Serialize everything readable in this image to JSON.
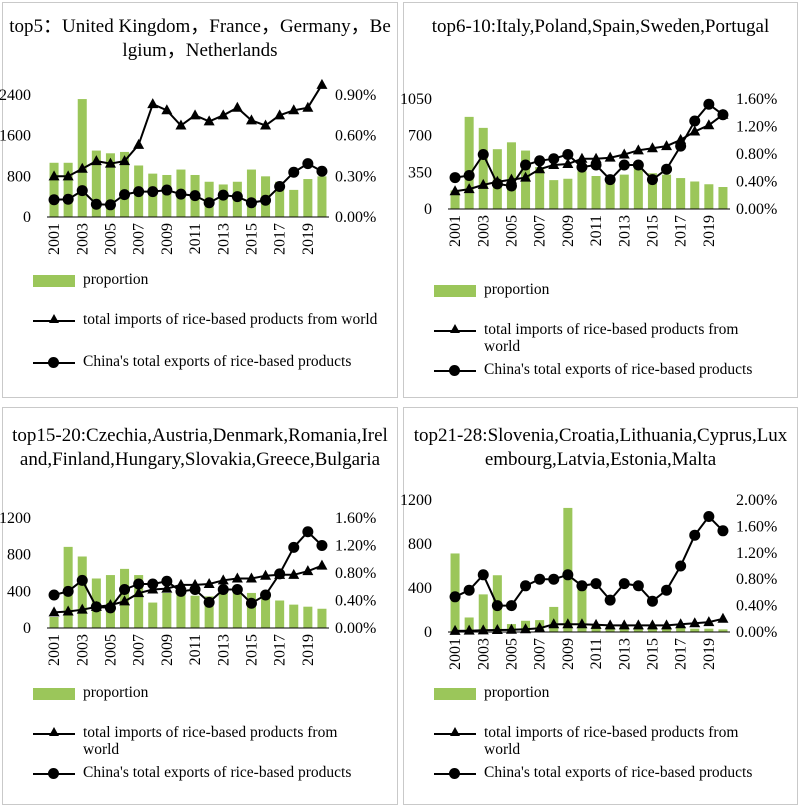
{
  "colors": {
    "bar": "#9bc65a",
    "line": "#000000"
  },
  "legend_labels": {
    "proportion": "proportion",
    "imports": "total imports of rice-based products from world",
    "exports": "China's total exports of rice-based products"
  },
  "chart_data": [
    {
      "type": "bar+line",
      "title": "top5：United Kingdom，France，Germany，Belgium，Netherlands",
      "years": [
        2001,
        2002,
        2003,
        2004,
        2005,
        2006,
        2007,
        2008,
        2009,
        2010,
        2011,
        2012,
        2013,
        2014,
        2015,
        2016,
        2017,
        2018,
        2019,
        2020
      ],
      "x_tick_labels": [
        "2001",
        "2003",
        "2005",
        "2007",
        "2009",
        "2011",
        "2013",
        "2015",
        "2017",
        "2019"
      ],
      "left_axis": {
        "min": 0,
        "max": 2400,
        "ticks": [
          "0",
          "800",
          "1600",
          "2400"
        ]
      },
      "right_axis": {
        "min": 0,
        "max": 0.9,
        "ticks": [
          "0.00%",
          "0.30%",
          "0.60%",
          "0.90%"
        ]
      },
      "series": [
        {
          "name": "proportion",
          "axis": "right",
          "kind": "bar",
          "values": [
            0.4,
            0.4,
            0.87,
            0.49,
            0.47,
            0.48,
            0.38,
            0.32,
            0.31,
            0.35,
            0.31,
            0.26,
            0.24,
            0.26,
            0.35,
            0.3,
            0.26,
            0.2,
            0.28,
            0.3
          ]
        },
        {
          "name": "total imports of rice-based products from world",
          "axis": "left",
          "kind": "line-triangle",
          "values": [
            800,
            800,
            950,
            1100,
            1050,
            1100,
            1420,
            2220,
            2100,
            1800,
            2000,
            1880,
            2000,
            2150,
            1900,
            1800,
            2000,
            2100,
            2150,
            2600
          ]
        },
        {
          "name": "China's total exports of rice-based products",
          "axis": "left",
          "kind": "line-circle",
          "values": [
            340,
            350,
            520,
            250,
            240,
            440,
            500,
            500,
            530,
            450,
            420,
            280,
            430,
            400,
            280,
            330,
            600,
            880,
            1050,
            900
          ]
        }
      ]
    },
    {
      "type": "bar+line",
      "title": "top6-10:Italy,Poland,Spain,Sweden,Portugal",
      "years": [
        2001,
        2002,
        2003,
        2004,
        2005,
        2006,
        2007,
        2008,
        2009,
        2010,
        2011,
        2012,
        2013,
        2014,
        2015,
        2016,
        2017,
        2018,
        2019,
        2020
      ],
      "x_tick_labels": [
        "2001",
        "2003",
        "2005",
        "2007",
        "2009",
        "2011",
        "2013",
        "2015",
        "2017",
        "2019"
      ],
      "left_axis": {
        "min": 0,
        "max": 1050,
        "ticks": [
          "0",
          "350",
          "700",
          "1050"
        ]
      },
      "right_axis": {
        "min": 0,
        "max": 1.6,
        "ticks": [
          "0.00%",
          "0.40%",
          "0.80%",
          "1.20%",
          "1.60%"
        ]
      },
      "series": [
        {
          "name": "proportion",
          "axis": "right",
          "kind": "bar",
          "values": [
            0.27,
            1.34,
            1.18,
            0.87,
            0.97,
            0.85,
            0.61,
            0.42,
            0.44,
            0.55,
            0.48,
            0.45,
            0.5,
            0.6,
            0.52,
            0.5,
            0.45,
            0.4,
            0.36,
            0.32
          ]
        },
        {
          "name": "total imports of rice-based products from world",
          "axis": "left",
          "kind": "line-triangle",
          "values": [
            170,
            190,
            230,
            260,
            280,
            300,
            380,
            420,
            430,
            480,
            480,
            490,
            520,
            560,
            580,
            600,
            660,
            740,
            800,
            900
          ]
        },
        {
          "name": "China's total exports of rice-based products",
          "axis": "left",
          "kind": "line-circle",
          "values": [
            300,
            320,
            520,
            240,
            220,
            420,
            460,
            480,
            520,
            400,
            420,
            280,
            420,
            420,
            280,
            380,
            600,
            840,
            1000,
            900
          ]
        }
      ]
    },
    {
      "type": "bar+line",
      "title": "top15-20:Czechia,Austria,Denmark,Romania,Ireland,Finland,Hungary,Slovakia,Greece,Bulgaria",
      "years": [
        2001,
        2002,
        2003,
        2004,
        2005,
        2006,
        2007,
        2008,
        2009,
        2010,
        2011,
        2012,
        2013,
        2014,
        2015,
        2016,
        2017,
        2018,
        2019,
        2020
      ],
      "x_tick_labels": [
        "2001",
        "2003",
        "2005",
        "2007",
        "2009",
        "2011",
        "2013",
        "2015",
        "2017",
        "2019"
      ],
      "left_axis": {
        "min": 0,
        "max": 1200,
        "ticks": [
          "0",
          "400",
          "800",
          "1200"
        ]
      },
      "right_axis": {
        "min": 0,
        "max": 1.6,
        "ticks": [
          "0.00%",
          "0.40%",
          "0.80%",
          "1.20%",
          "1.60%"
        ]
      },
      "series": [
        {
          "name": "proportion",
          "axis": "right",
          "kind": "bar",
          "values": [
            0.16,
            1.18,
            1.04,
            0.72,
            0.77,
            0.86,
            0.77,
            0.37,
            0.51,
            0.57,
            0.47,
            0.46,
            0.59,
            0.56,
            0.51,
            0.48,
            0.4,
            0.34,
            0.31,
            0.28
          ]
        },
        {
          "name": "total imports of rice-based products from world",
          "axis": "left",
          "kind": "line-triangle",
          "values": [
            170,
            180,
            200,
            230,
            250,
            290,
            380,
            420,
            430,
            470,
            470,
            480,
            520,
            540,
            540,
            570,
            580,
            580,
            620,
            680
          ]
        },
        {
          "name": "China's total exports of rice-based products",
          "axis": "left",
          "kind": "line-circle",
          "values": [
            360,
            400,
            520,
            230,
            220,
            420,
            480,
            480,
            510,
            400,
            420,
            280,
            420,
            420,
            270,
            360,
            590,
            880,
            1050,
            900
          ]
        }
      ]
    },
    {
      "type": "bar+line",
      "title": "top21-28:Slovenia,Croatia,Lithuania,Cyprus,Luxembourg,Latvia,Estonia,Malta",
      "years": [
        2001,
        2002,
        2003,
        2004,
        2005,
        2006,
        2007,
        2008,
        2009,
        2010,
        2011,
        2012,
        2013,
        2014,
        2015,
        2016,
        2017,
        2018,
        2019,
        2020
      ],
      "x_tick_labels": [
        "2001",
        "2003",
        "2005",
        "2007",
        "2009",
        "2011",
        "2013",
        "2015",
        "2017",
        "2019"
      ],
      "left_axis": {
        "min": 0,
        "max": 1200,
        "ticks": [
          "0",
          "400",
          "800",
          "1200"
        ]
      },
      "right_axis": {
        "min": 0,
        "max": 2.0,
        "ticks": [
          "0.00%",
          "0.40%",
          "0.80%",
          "1.20%",
          "1.60%",
          "2.00%"
        ]
      },
      "series": [
        {
          "name": "proportion",
          "axis": "right",
          "kind": "bar",
          "values": [
            1.19,
            0.22,
            0.57,
            0.86,
            0.12,
            0.17,
            0.18,
            0.38,
            1.88,
            0.66,
            0.1,
            0.08,
            0.1,
            0.07,
            0.06,
            0.07,
            0.06,
            0.05,
            0.05,
            0.04
          ]
        },
        {
          "name": "total imports of rice-based products from world",
          "axis": "left",
          "kind": "line-triangle",
          "values": [
            10,
            12,
            15,
            18,
            20,
            25,
            35,
            70,
            70,
            70,
            65,
            60,
            60,
            60,
            60,
            60,
            70,
            80,
            90,
            120
          ]
        },
        {
          "name": "China's total exports of rice-based products",
          "axis": "left",
          "kind": "line-circle",
          "values": [
            320,
            380,
            520,
            240,
            240,
            420,
            480,
            480,
            520,
            420,
            440,
            290,
            440,
            420,
            280,
            380,
            600,
            880,
            1050,
            920
          ]
        }
      ]
    }
  ]
}
